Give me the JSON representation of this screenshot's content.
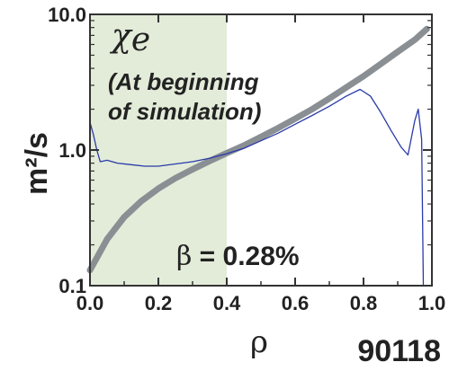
{
  "chart_data": {
    "type": "line",
    "xlabel": "ρ",
    "ylabel": "m²/s",
    "xlim": [
      0.0,
      1.0
    ],
    "ylim": [
      0.1,
      10.0
    ],
    "yscale": "log",
    "grid": false,
    "x_ticks": [
      0.0,
      0.2,
      0.4,
      0.6,
      0.8,
      1.0
    ],
    "x_tick_labels": [
      "0.0",
      "0.2",
      "0.4",
      "0.6",
      "0.8",
      "1.0"
    ],
    "y_ticks": [
      0.1,
      1.0,
      10.0
    ],
    "y_tick_labels": [
      "0.1",
      "1.0",
      "10.0"
    ],
    "shaded_region": {
      "x": [
        0.0,
        0.4
      ],
      "color": "#e2ecd9"
    },
    "annotation": {
      "symbol": "χ",
      "subscript": "e",
      "line1": "(At beginning",
      "line2": "of simulation)"
    },
    "beta_label": {
      "symbol": "β",
      "text": " = 0.28%"
    },
    "shot_label": "90118",
    "series": [
      {
        "color": "#8a8f94",
        "style": "thick",
        "x": [
          0.0,
          0.05,
          0.1,
          0.15,
          0.2,
          0.25,
          0.3,
          0.35,
          0.4,
          0.45,
          0.5,
          0.55,
          0.6,
          0.65,
          0.7,
          0.75,
          0.8,
          0.85,
          0.9,
          0.95,
          0.985
        ],
        "y": [
          0.13,
          0.22,
          0.32,
          0.42,
          0.52,
          0.62,
          0.72,
          0.83,
          0.95,
          1.08,
          1.25,
          1.45,
          1.7,
          2.0,
          2.4,
          2.9,
          3.5,
          4.3,
          5.3,
          6.5,
          7.8
        ]
      },
      {
        "color": "#2a3aa8",
        "style": "thin",
        "x": [
          0.0,
          0.01,
          0.02,
          0.03,
          0.05,
          0.08,
          0.12,
          0.16,
          0.2,
          0.25,
          0.3,
          0.35,
          0.4,
          0.45,
          0.5,
          0.55,
          0.6,
          0.65,
          0.7,
          0.75,
          0.79,
          0.82,
          0.85,
          0.88,
          0.91,
          0.93,
          0.95,
          0.96,
          0.97,
          0.975
        ],
        "y": [
          1.6,
          1.3,
          1.0,
          0.82,
          0.84,
          0.8,
          0.78,
          0.76,
          0.76,
          0.79,
          0.82,
          0.87,
          0.94,
          1.03,
          1.17,
          1.33,
          1.55,
          1.8,
          2.1,
          2.5,
          2.8,
          2.5,
          1.9,
          1.4,
          1.05,
          0.92,
          1.65,
          2.0,
          1.2,
          0.1
        ]
      }
    ]
  }
}
